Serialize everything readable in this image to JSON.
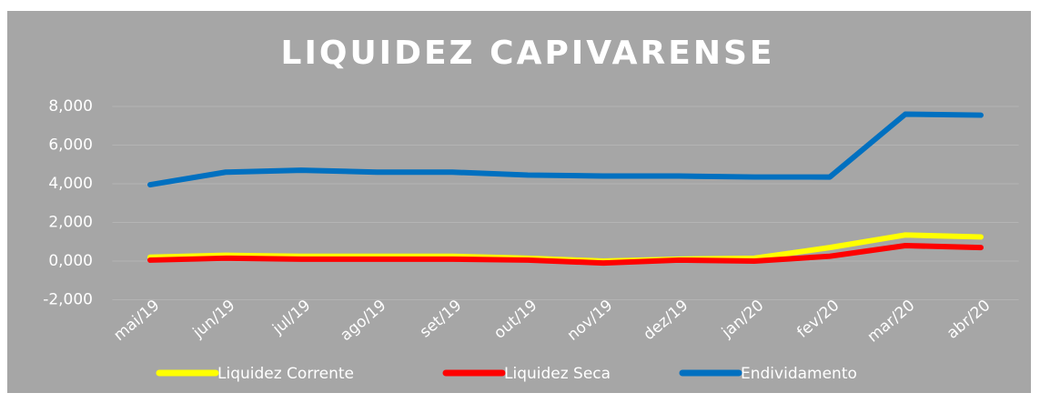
{
  "chart_data": {
    "type": "line",
    "title": "LIQUIDEZ CAPIVARENSE",
    "categories": [
      "mai/19",
      "jun/19",
      "jul/19",
      "ago/19",
      "set/19",
      "out/19",
      "nov/19",
      "dez/19",
      "jan/20",
      "fev/20",
      "mar/20",
      "abr/20"
    ],
    "series": [
      {
        "name": "Liquidez Corrente",
        "color": "#ffff00",
        "values": [
          0.2,
          0.3,
          0.25,
          0.25,
          0.25,
          0.15,
          0,
          0.1,
          0.15,
          0.7,
          1.35,
          1.25
        ]
      },
      {
        "name": "Liquidez Seca",
        "color": "#ff0000",
        "values": [
          0.05,
          0.15,
          0.1,
          0.1,
          0.1,
          0.05,
          -0.1,
          0.05,
          0,
          0.25,
          0.8,
          0.7
        ]
      },
      {
        "name": "Endividamento",
        "color": "#0070c0",
        "values": [
          3.95,
          4.6,
          4.7,
          4.6,
          4.6,
          4.45,
          4.4,
          4.4,
          4.35,
          4.35,
          7.6,
          7.55
        ]
      }
    ],
    "ylim": [
      -2,
      8
    ],
    "yticks": [
      {
        "value": -2,
        "label": "-2,000"
      },
      {
        "value": 0,
        "label": "0,000"
      },
      {
        "value": 2,
        "label": "2,000"
      },
      {
        "value": 4,
        "label": "4,000"
      },
      {
        "value": 6,
        "label": "6,000"
      },
      {
        "value": 8,
        "label": "8,000"
      }
    ],
    "grid": true,
    "legend": "bottom"
  }
}
